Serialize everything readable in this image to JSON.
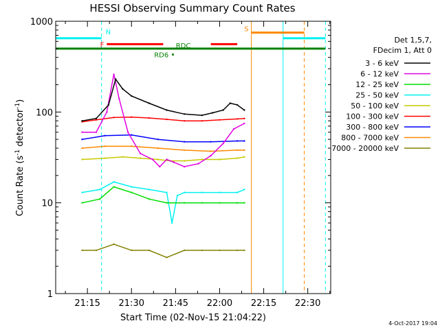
{
  "chart_data": {
    "type": "line",
    "title": "HESSI Observing Summary Count Rates",
    "xlabel": "Start Time (02-Nov-15 21:04:22)",
    "ylabel_main": "Count Rate (s",
    "ylabel_sup1": "-1",
    "ylabel_mid": " detector",
    "ylabel_sup2": "-1",
    "ylabel_end": ")",
    "yscale": "log",
    "ylim": [
      1,
      1000
    ],
    "xlim_minutes": [
      21.07,
      22.63
    ],
    "xticks": [
      {
        "value": 21.25,
        "label": "21:15"
      },
      {
        "value": 21.5,
        "label": "21:30"
      },
      {
        "value": 21.75,
        "label": "21:45"
      },
      {
        "value": 22.0,
        "label": "22:00"
      },
      {
        "value": 22.25,
        "label": "22:15"
      },
      {
        "value": 22.5,
        "label": "22:30"
      }
    ],
    "yticks": [
      {
        "value": 1,
        "label": "1"
      },
      {
        "value": 10,
        "label": "10"
      },
      {
        "value": 100,
        "label": "100"
      },
      {
        "value": 1000,
        "label": "1000"
      }
    ],
    "legend_header": [
      "Det 1,5,7,",
      "FDecim 1, Att 0"
    ],
    "legend_position": "right",
    "series": [
      {
        "name": "3 - 6 keV",
        "color": "#000000",
        "x": [
          21.22,
          21.3,
          21.37,
          21.41,
          21.45,
          21.5,
          21.6,
          21.7,
          21.8,
          21.9,
          21.96,
          22.02,
          22.06,
          22.1,
          22.14
        ],
        "y": [
          80,
          85,
          120,
          230,
          180,
          150,
          125,
          105,
          95,
          92,
          98,
          105,
          125,
          120,
          105
        ]
      },
      {
        "name": "6 - 12 keV",
        "color": "#e000e0",
        "x": [
          21.22,
          21.3,
          21.36,
          21.4,
          21.43,
          21.48,
          21.55,
          21.62,
          21.66,
          21.7,
          21.74,
          21.8,
          21.88,
          21.95,
          22.02,
          22.08,
          22.14
        ],
        "y": [
          60,
          60,
          100,
          260,
          140,
          60,
          35,
          30,
          25,
          30,
          28,
          25,
          27,
          33,
          45,
          65,
          75
        ]
      },
      {
        "name": "12 - 25 keV",
        "color": "#00dd00",
        "x": [
          21.22,
          21.32,
          21.4,
          21.5,
          21.6,
          21.7,
          21.8,
          21.9,
          22.0,
          22.1,
          22.14
        ],
        "y": [
          10,
          11,
          15,
          13,
          11,
          10,
          10,
          10,
          10,
          10,
          10
        ]
      },
      {
        "name": "25 - 50 keV",
        "color": "#00f0f0",
        "x": [
          21.22,
          21.32,
          21.4,
          21.5,
          21.6,
          21.7,
          21.73,
          21.76,
          21.8,
          21.9,
          22.0,
          22.1,
          22.14
        ],
        "y": [
          13,
          14,
          17,
          15,
          14,
          13,
          6,
          12,
          13,
          13,
          13,
          13,
          14
        ]
      },
      {
        "name": "50 - 100 keV",
        "color": "#c8c800",
        "x": [
          21.22,
          21.35,
          21.45,
          21.55,
          21.65,
          21.72,
          21.8,
          21.9,
          22.0,
          22.1,
          22.14
        ],
        "y": [
          30,
          31,
          32,
          31,
          30,
          29,
          29,
          30,
          30,
          31,
          32
        ]
      },
      {
        "name": "100 - 300 keV",
        "color": "#ff0000",
        "x": [
          21.22,
          21.3,
          21.4,
          21.5,
          21.6,
          21.7,
          21.8,
          21.9,
          22.0,
          22.1,
          22.14
        ],
        "y": [
          78,
          82,
          87,
          88,
          86,
          83,
          80,
          80,
          82,
          84,
          85
        ]
      },
      {
        "name": "300 - 800 keV",
        "color": "#0000ff",
        "x": [
          21.22,
          21.35,
          21.5,
          21.65,
          21.8,
          21.95,
          22.1,
          22.14
        ],
        "y": [
          50,
          55,
          56,
          50,
          47,
          47,
          48,
          48
        ]
      },
      {
        "name": "800 - 7000 keV",
        "color": "#ff8800",
        "x": [
          21.22,
          21.35,
          21.5,
          21.65,
          21.8,
          21.95,
          22.1,
          22.14
        ],
        "y": [
          40,
          42,
          42,
          40,
          38,
          37,
          38,
          38
        ]
      },
      {
        "name": "7000 - 20000 keV",
        "color": "#808000",
        "x": [
          21.22,
          21.3,
          21.4,
          21.5,
          21.6,
          21.7,
          21.8,
          21.9,
          22.0,
          22.1,
          22.14
        ],
        "y": [
          3,
          3,
          3.5,
          3,
          3,
          2.5,
          3,
          3,
          3,
          3,
          3
        ]
      }
    ],
    "flags": [
      {
        "label": "N",
        "color": "#00f0f0",
        "y": 650,
        "segments": [
          [
            21.07,
            21.33
          ],
          [
            22.36,
            22.6
          ]
        ]
      },
      {
        "label": "F",
        "color": "#ff0000",
        "y": 560,
        "segments": [
          [
            21.36,
            21.68
          ],
          [
            21.95,
            22.1
          ]
        ]
      },
      {
        "label": "S",
        "color": "#ff8800",
        "y": 750,
        "segments": [
          [
            22.18,
            22.48
          ]
        ]
      },
      {
        "label": "RD6",
        "color": "#008000",
        "y": 430,
        "segments": [
          [
            21.73,
            21.74
          ]
        ]
      },
      {
        "label": "RDC",
        "color": "#008000",
        "y": 500,
        "segments": [
          [
            21.07,
            22.6
          ]
        ]
      }
    ],
    "vlines": [
      {
        "x": 21.07,
        "color": "#00f0f0",
        "style": "solid"
      },
      {
        "x": 21.33,
        "color": "#00f0f0",
        "style": "dashed"
      },
      {
        "x": 22.18,
        "color": "#ff8800",
        "style": "solid"
      },
      {
        "x": 22.36,
        "color": "#00f0f0",
        "style": "solid"
      },
      {
        "x": 22.48,
        "color": "#ff8800",
        "style": "dashed"
      },
      {
        "x": 22.6,
        "color": "#00f0f0",
        "style": "dashed"
      }
    ],
    "footer": "4-Oct-2017 19:04"
  }
}
